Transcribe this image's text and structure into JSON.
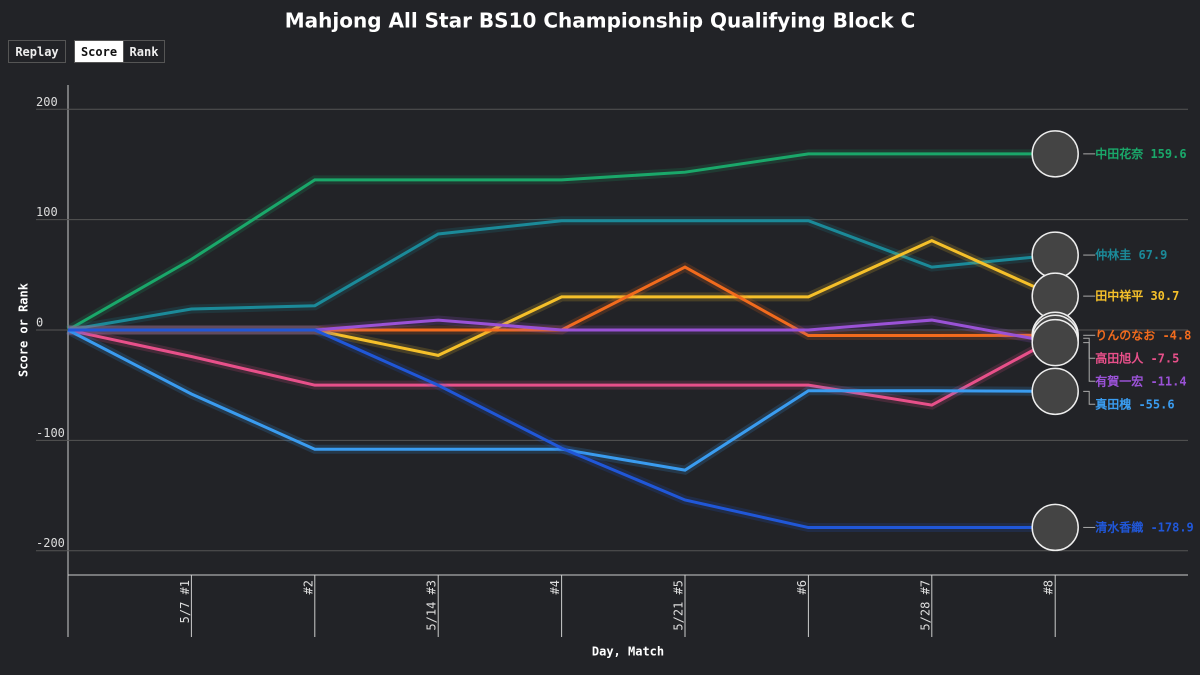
{
  "buttons": [
    "Replay",
    "Score",
    "Rank"
  ],
  "chart_data": {
    "type": "line",
    "title": "Mahjong All Star BS10 Championship Qualifying Block C",
    "x_label": "Day, Match",
    "y_label": "Score or Rank",
    "categories": [
      null,
      "5/7 #1",
      "#2",
      "5/14 #3",
      "#4",
      "5/21 #5",
      "#6",
      "5/28 #7",
      "#8"
    ],
    "ylim": [
      -222,
      222
    ],
    "yticks": [
      200,
      100,
      0,
      -100,
      -200
    ],
    "grid": true,
    "series": [
      {
        "name": "中田花奈",
        "color": "#1aa86a",
        "values": [
          0,
          64,
          136,
          136,
          136,
          143,
          159.6,
          159.6,
          159.6
        ]
      },
      {
        "name": "仲林圭",
        "color": "#1b8a99",
        "values": [
          0,
          19,
          22,
          87,
          99,
          99,
          99,
          57,
          67.9
        ]
      },
      {
        "name": "田中祥平",
        "color": "#f5c02a",
        "values": [
          0,
          0,
          0,
          -23,
          30,
          30,
          30,
          81,
          30.7
        ]
      },
      {
        "name": "りんのなお",
        "color": "#f26b1d",
        "values": [
          0,
          0,
          0,
          0,
          0,
          57,
          -5,
          -5,
          -4.8
        ]
      },
      {
        "name": "高田旭人",
        "color": "#e8508a",
        "values": [
          0,
          -24,
          -50,
          -50,
          -50,
          -50,
          -50,
          -68,
          -7.5
        ]
      },
      {
        "name": "有賀一宏",
        "color": "#9a52d6",
        "values": [
          0,
          0,
          0,
          9,
          0,
          0,
          0,
          9,
          -11.4
        ]
      },
      {
        "name": "真田槐",
        "color": "#3a9cf0",
        "values": [
          0,
          -58,
          -108,
          -108,
          -108,
          -127,
          -55,
          -55,
          -55.6
        ]
      },
      {
        "name": "清水香織",
        "color": "#2057d8",
        "values": [
          0,
          0,
          0,
          -50,
          -107,
          -154,
          -179,
          -179,
          -178.9
        ]
      }
    ]
  }
}
